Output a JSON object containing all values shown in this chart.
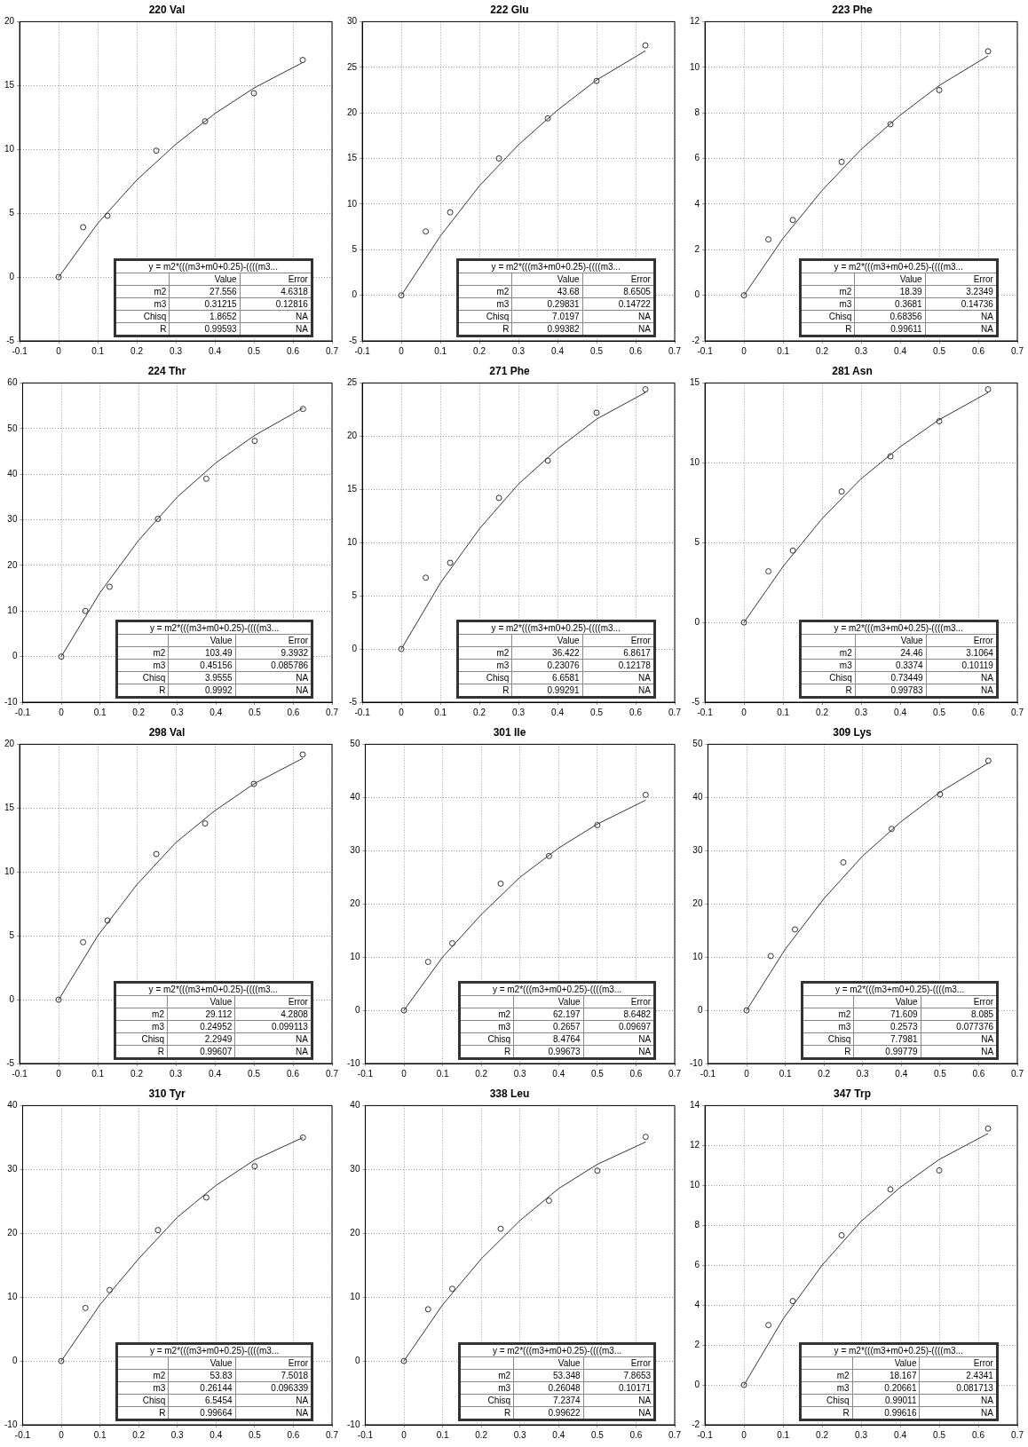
{
  "chart_data": [
    {
      "type": "scatter",
      "title": "220 Val",
      "marker": "circle",
      "grid": true,
      "xlim": [
        -0.1,
        0.7
      ],
      "xticks": [
        -0.1,
        0,
        0.1,
        0.2,
        0.3,
        0.4,
        0.5,
        0.6,
        0.7
      ],
      "ylim": [
        -5,
        20
      ],
      "yticks": [
        -5,
        0,
        5,
        10,
        15,
        20
      ],
      "series": [
        {
          "color": "#333333",
          "x": [
            0,
            0.0625,
            0.125,
            0.25,
            0.375,
            0.5,
            0.625
          ],
          "values": [
            0,
            3.9,
            4.8,
            9.9,
            12.2,
            14.4,
            17.0
          ]
        },
        {
          "type": "line",
          "marker": "none",
          "color": "#333333",
          "x": [
            0,
            0.1,
            0.2,
            0.3,
            0.4,
            0.5,
            0.625
          ],
          "values": [
            0,
            4.2,
            7.6,
            10.4,
            12.8,
            14.8,
            16.8
          ]
        }
      ],
      "annotations": [
        "y = m2*(((m3+m0+0.25)-((((m3...",
        "Value",
        "Error",
        "m2",
        "27.556",
        "4.6318",
        "m3",
        "0.31215",
        "0.12816",
        "Chisq",
        "1.8652",
        "NA",
        "R",
        "0.99593",
        "NA"
      ]
    },
    {
      "type": "scatter",
      "title": "222 Glu",
      "marker": "circle",
      "grid": true,
      "xlim": [
        -0.1,
        0.7
      ],
      "xticks": [
        -0.1,
        0,
        0.1,
        0.2,
        0.3,
        0.4,
        0.5,
        0.6,
        0.7
      ],
      "ylim": [
        -5,
        30
      ],
      "yticks": [
        -5,
        0,
        5,
        10,
        15,
        20,
        25,
        30
      ],
      "series": [
        {
          "color": "#333333",
          "x": [
            0,
            0.0625,
            0.125,
            0.25,
            0.375,
            0.5,
            0.625
          ],
          "values": [
            0,
            7.0,
            9.1,
            15.0,
            19.4,
            23.5,
            27.4
          ]
        },
        {
          "type": "line",
          "marker": "none",
          "color": "#333333",
          "x": [
            0,
            0.1,
            0.2,
            0.3,
            0.4,
            0.5,
            0.625
          ],
          "values": [
            0,
            6.5,
            12.0,
            16.5,
            20.3,
            23.6,
            26.8
          ]
        }
      ],
      "annotations": [
        "y = m2*(((m3+m0+0.25)-((((m3...",
        "Value",
        "Error",
        "m2",
        "43.68",
        "8.6505",
        "m3",
        "0.29831",
        "0.14722",
        "Chisq",
        "7.0197",
        "NA",
        "R",
        "0.99382",
        "NA"
      ]
    },
    {
      "type": "scatter",
      "title": "223 Phe",
      "marker": "circle",
      "grid": true,
      "xlim": [
        -0.1,
        0.7
      ],
      "xticks": [
        -0.1,
        0,
        0.1,
        0.2,
        0.3,
        0.4,
        0.5,
        0.6,
        0.7
      ],
      "ylim": [
        -2,
        12
      ],
      "yticks": [
        -2,
        0,
        2,
        4,
        6,
        8,
        10,
        12
      ],
      "series": [
        {
          "color": "#333333",
          "x": [
            0,
            0.0625,
            0.125,
            0.25,
            0.375,
            0.5,
            0.625
          ],
          "values": [
            0,
            2.45,
            3.3,
            5.85,
            7.5,
            9.0,
            10.7
          ]
        },
        {
          "type": "line",
          "marker": "none",
          "color": "#333333",
          "x": [
            0,
            0.1,
            0.2,
            0.3,
            0.4,
            0.5,
            0.625
          ],
          "values": [
            0,
            2.5,
            4.6,
            6.4,
            7.9,
            9.2,
            10.5
          ]
        }
      ],
      "annotations": [
        "y = m2*(((m3+m0+0.25)-((((m3...",
        "Value",
        "Error",
        "m2",
        "18.39",
        "3.2349",
        "m3",
        "0.3681",
        "0.14736",
        "Chisq",
        "0.68356",
        "NA",
        "R",
        "0.99611",
        "NA"
      ]
    },
    {
      "type": "scatter",
      "title": "224 Thr",
      "marker": "circle",
      "grid": true,
      "xlim": [
        -0.1,
        0.7
      ],
      "xticks": [
        -0.1,
        0,
        0.1,
        0.2,
        0.3,
        0.4,
        0.5,
        0.6,
        0.7
      ],
      "ylim": [
        -10,
        60
      ],
      "yticks": [
        -10,
        0,
        10,
        20,
        30,
        40,
        50,
        60
      ],
      "series": [
        {
          "color": "#333333",
          "x": [
            0,
            0.0625,
            0.125,
            0.25,
            0.375,
            0.5,
            0.625
          ],
          "values": [
            0,
            10,
            15.3,
            30.2,
            39,
            47.3,
            54.3
          ]
        },
        {
          "type": "line",
          "marker": "none",
          "color": "#333333",
          "x": [
            0,
            0.1,
            0.2,
            0.3,
            0.4,
            0.5,
            0.625
          ],
          "values": [
            0,
            14,
            25.5,
            35,
            42.5,
            48.5,
            54.5
          ]
        }
      ],
      "annotations": [
        "y = m2*(((m3+m0+0.25)-((((m3...",
        "Value",
        "Error",
        "m2",
        "103.49",
        "9.3932",
        "m3",
        "0.45156",
        "0.085786",
        "Chisq",
        "3.9555",
        "NA",
        "R",
        "0.9992",
        "NA"
      ]
    },
    {
      "type": "scatter",
      "title": "271 Phe",
      "marker": "circle",
      "grid": true,
      "xlim": [
        -0.1,
        0.7
      ],
      "xticks": [
        -0.1,
        0,
        0.1,
        0.2,
        0.3,
        0.4,
        0.5,
        0.6,
        0.7
      ],
      "ylim": [
        -5,
        25
      ],
      "yticks": [
        -5,
        0,
        5,
        10,
        15,
        20,
        25
      ],
      "series": [
        {
          "color": "#333333",
          "x": [
            0,
            0.0625,
            0.125,
            0.25,
            0.375,
            0.5,
            0.625
          ],
          "values": [
            0,
            6.7,
            8.1,
            14.2,
            17.7,
            22.2,
            24.4
          ]
        },
        {
          "type": "line",
          "marker": "none",
          "color": "#333333",
          "x": [
            0,
            0.1,
            0.2,
            0.3,
            0.4,
            0.5,
            0.625
          ],
          "values": [
            0,
            6.2,
            11.3,
            15.5,
            18.8,
            21.6,
            24.1
          ]
        }
      ],
      "annotations": [
        "y = m2*(((m3+m0+0.25)-((((m3...",
        "Value",
        "Error",
        "m2",
        "36.422",
        "6.8617",
        "m3",
        "0.23076",
        "0.12178",
        "Chisq",
        "6.6581",
        "NA",
        "R",
        "0.99291",
        "NA"
      ]
    },
    {
      "type": "scatter",
      "title": "281 Asn",
      "marker": "circle",
      "grid": true,
      "xlim": [
        -0.1,
        0.7
      ],
      "xticks": [
        -0.1,
        0,
        0.1,
        0.2,
        0.3,
        0.4,
        0.5,
        0.6,
        0.7
      ],
      "ylim": [
        -5,
        15
      ],
      "yticks": [
        -5,
        0,
        5,
        10,
        15
      ],
      "series": [
        {
          "color": "#333333",
          "x": [
            0,
            0.0625,
            0.125,
            0.25,
            0.375,
            0.5,
            0.625
          ],
          "values": [
            0,
            3.2,
            4.5,
            8.2,
            10.4,
            12.6,
            14.6
          ]
        },
        {
          "type": "line",
          "marker": "none",
          "color": "#333333",
          "x": [
            0,
            0.1,
            0.2,
            0.3,
            0.4,
            0.5,
            0.625
          ],
          "values": [
            0,
            3.5,
            6.5,
            9.0,
            11.0,
            12.7,
            14.4
          ]
        }
      ],
      "annotations": [
        "y = m2*(((m3+m0+0.25)-((((m3...",
        "Value",
        "Error",
        "m2",
        "24.46",
        "3.1064",
        "m3",
        "0.3374",
        "0.10119",
        "Chisq",
        "0.73449",
        "NA",
        "R",
        "0.99783",
        "NA"
      ]
    },
    {
      "type": "scatter",
      "title": "298 Val",
      "marker": "circle",
      "grid": true,
      "xlim": [
        -0.1,
        0.7
      ],
      "xticks": [
        -0.1,
        0,
        0.1,
        0.2,
        0.3,
        0.4,
        0.5,
        0.6,
        0.7
      ],
      "ylim": [
        -5,
        20
      ],
      "yticks": [
        -5,
        0,
        5,
        10,
        15,
        20
      ],
      "series": [
        {
          "color": "#333333",
          "x": [
            0,
            0.0625,
            0.125,
            0.25,
            0.375,
            0.5,
            0.625
          ],
          "values": [
            0,
            4.5,
            6.2,
            11.4,
            13.8,
            16.9,
            19.2
          ]
        },
        {
          "type": "line",
          "marker": "none",
          "color": "#333333",
          "x": [
            0,
            0.1,
            0.2,
            0.3,
            0.4,
            0.5,
            0.625
          ],
          "values": [
            0,
            5.0,
            9.0,
            12.3,
            14.8,
            16.9,
            18.9
          ]
        }
      ],
      "annotations": [
        "y = m2*(((m3+m0+0.25)-((((m3...",
        "Value",
        "Error",
        "m2",
        "29.112",
        "4.2808",
        "m3",
        "0.24952",
        "0.099113",
        "Chisq",
        "2.2949",
        "NA",
        "R",
        "0.99607",
        "NA"
      ]
    },
    {
      "type": "scatter",
      "title": "301 Ile",
      "marker": "circle",
      "grid": true,
      "xlim": [
        -0.1,
        0.7
      ],
      "xticks": [
        -0.1,
        0,
        0.1,
        0.2,
        0.3,
        0.4,
        0.5,
        0.6,
        0.7
      ],
      "ylim": [
        -10,
        50
      ],
      "yticks": [
        -10,
        0,
        10,
        20,
        30,
        40,
        50
      ],
      "series": [
        {
          "color": "#333333",
          "x": [
            0,
            0.0625,
            0.125,
            0.25,
            0.375,
            0.5,
            0.625
          ],
          "values": [
            0,
            9.1,
            12.6,
            23.8,
            29.0,
            34.8,
            40.5
          ]
        },
        {
          "type": "line",
          "marker": "none",
          "color": "#333333",
          "x": [
            0,
            0.1,
            0.2,
            0.3,
            0.4,
            0.5,
            0.625
          ],
          "values": [
            0,
            10,
            18,
            25,
            30.5,
            35,
            39.5
          ]
        }
      ],
      "annotations": [
        "y = m2*(((m3+m0+0.25)-((((m3...",
        "Value",
        "Error",
        "m2",
        "62.197",
        "8.6482",
        "m3",
        "0.2657",
        "0.09697",
        "Chisq",
        "8.4764",
        "NA",
        "R",
        "0.99673",
        "NA"
      ]
    },
    {
      "type": "scatter",
      "title": "309 Lys",
      "marker": "circle",
      "grid": true,
      "xlim": [
        -0.1,
        0.7
      ],
      "xticks": [
        -0.1,
        0,
        0.1,
        0.2,
        0.3,
        0.4,
        0.5,
        0.6,
        0.7
      ],
      "ylim": [
        -10,
        50
      ],
      "yticks": [
        -10,
        0,
        10,
        20,
        30,
        40,
        50
      ],
      "series": [
        {
          "color": "#333333",
          "x": [
            0,
            0.0625,
            0.125,
            0.25,
            0.375,
            0.5,
            0.625
          ],
          "values": [
            0,
            10.2,
            15.2,
            27.8,
            34.1,
            40.6,
            46.9
          ]
        },
        {
          "type": "line",
          "marker": "none",
          "color": "#333333",
          "x": [
            0,
            0.1,
            0.2,
            0.3,
            0.4,
            0.5,
            0.625
          ],
          "values": [
            0,
            11.5,
            21,
            29,
            35.5,
            41,
            46.5
          ]
        }
      ],
      "annotations": [
        "y = m2*(((m3+m0+0.25)-((((m3...",
        "Value",
        "Error",
        "m2",
        "71.609",
        "8.085",
        "m3",
        "0.2573",
        "0.077376",
        "Chisq",
        "7.7981",
        "NA",
        "R",
        "0.99779",
        "NA"
      ]
    },
    {
      "type": "scatter",
      "title": "310 Tyr",
      "marker": "circle",
      "grid": true,
      "xlim": [
        -0.1,
        0.7
      ],
      "xticks": [
        -0.1,
        0,
        0.1,
        0.2,
        0.3,
        0.4,
        0.5,
        0.6,
        0.7
      ],
      "ylim": [
        -10,
        40
      ],
      "yticks": [
        -10,
        0,
        10,
        20,
        30,
        40
      ],
      "series": [
        {
          "color": "#333333",
          "x": [
            0,
            0.0625,
            0.125,
            0.25,
            0.375,
            0.5,
            0.625
          ],
          "values": [
            0,
            8.3,
            11.1,
            20.5,
            25.6,
            30.5,
            35.0
          ]
        },
        {
          "type": "line",
          "marker": "none",
          "color": "#333333",
          "x": [
            0,
            0.1,
            0.2,
            0.3,
            0.4,
            0.5,
            0.625
          ],
          "values": [
            0,
            8.8,
            16,
            22.5,
            27.5,
            31.5,
            35
          ]
        }
      ],
      "annotations": [
        "y = m2*(((m3+m0+0.25)-((((m3...",
        "Value",
        "Error",
        "m2",
        "53.83",
        "7.5018",
        "m3",
        "0.26144",
        "0.096339",
        "Chisq",
        "6.5454",
        "NA",
        "R",
        "0.99664",
        "NA"
      ]
    },
    {
      "type": "scatter",
      "title": "338 Leu",
      "marker": "circle",
      "grid": true,
      "xlim": [
        -0.1,
        0.7
      ],
      "xticks": [
        -0.1,
        0,
        0.1,
        0.2,
        0.3,
        0.4,
        0.5,
        0.6,
        0.7
      ],
      "ylim": [
        -10,
        40
      ],
      "yticks": [
        -10,
        0,
        10,
        20,
        30,
        40
      ],
      "series": [
        {
          "color": "#333333",
          "x": [
            0,
            0.0625,
            0.125,
            0.25,
            0.375,
            0.5,
            0.625
          ],
          "values": [
            0,
            8.1,
            11.3,
            20.7,
            25.1,
            29.8,
            35.1
          ]
        },
        {
          "type": "line",
          "marker": "none",
          "color": "#333333",
          "x": [
            0,
            0.1,
            0.2,
            0.3,
            0.4,
            0.5,
            0.625
          ],
          "values": [
            0,
            8.8,
            16,
            22,
            27,
            30.8,
            34.3
          ]
        }
      ],
      "annotations": [
        "y = m2*(((m3+m0+0.25)-((((m3...",
        "Value",
        "Error",
        "m2",
        "53.348",
        "7.8653",
        "m3",
        "0.26048",
        "0.10171",
        "Chisq",
        "7.2374",
        "NA",
        "R",
        "0.99622",
        "NA"
      ]
    },
    {
      "type": "scatter",
      "title": "347 Trp",
      "marker": "circle",
      "grid": true,
      "xlim": [
        -0.1,
        0.7
      ],
      "xticks": [
        -0.1,
        0,
        0.1,
        0.2,
        0.3,
        0.4,
        0.5,
        0.6,
        0.7
      ],
      "ylim": [
        -2,
        14
      ],
      "yticks": [
        -2,
        0,
        2,
        4,
        6,
        8,
        10,
        12,
        14
      ],
      "series": [
        {
          "color": "#333333",
          "x": [
            0,
            0.0625,
            0.125,
            0.25,
            0.375,
            0.5,
            0.625
          ],
          "values": [
            0,
            3.0,
            4.2,
            7.5,
            9.8,
            10.75,
            12.85
          ]
        },
        {
          "type": "line",
          "marker": "none",
          "color": "#333333",
          "x": [
            0,
            0.1,
            0.2,
            0.3,
            0.4,
            0.5,
            0.625
          ],
          "values": [
            0,
            3.3,
            6.0,
            8.2,
            9.9,
            11.3,
            12.6
          ]
        }
      ],
      "annotations": [
        "y = m2*(((m3+m0+0.25)-((((m3...",
        "Value",
        "Error",
        "m2",
        "18.167",
        "2.4341",
        "m3",
        "0.20661",
        "0.081713",
        "Chisq",
        "0.99011",
        "NA",
        "R",
        "0.99616",
        "NA"
      ]
    }
  ]
}
